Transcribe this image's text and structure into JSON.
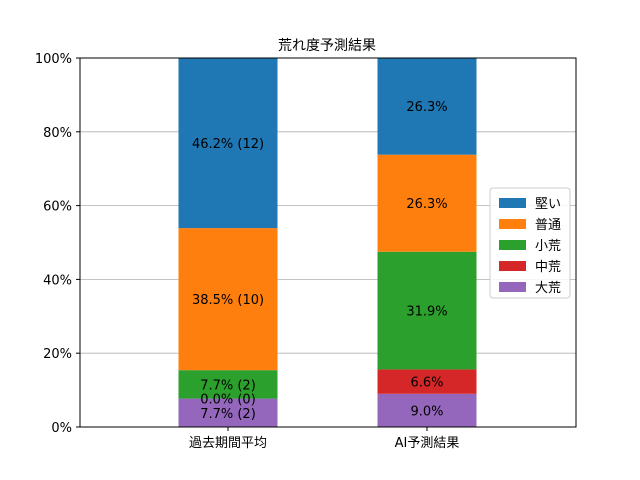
{
  "chart_data": {
    "type": "bar",
    "stacked": true,
    "title": "荒れ度予測結果",
    "xlabel": "",
    "ylabel": "",
    "ylim": [
      0,
      100
    ],
    "y_ticks": [
      "0%",
      "20%",
      "40%",
      "60%",
      "80%",
      "100%"
    ],
    "y_tick_values": [
      0,
      20,
      40,
      60,
      80,
      100
    ],
    "grid": "horizontal",
    "legend_position": "right",
    "categories": [
      "過去期間平均",
      "AI予測結果"
    ],
    "series": [
      {
        "name": "大荒",
        "color": "#9467bd",
        "values": [
          7.7,
          9.0
        ],
        "labels": [
          "7.7% (2)",
          "9.0%"
        ]
      },
      {
        "name": "中荒",
        "color": "#d62728",
        "values": [
          0.0,
          6.6
        ],
        "labels": [
          "0.0% (0)",
          "6.6%"
        ]
      },
      {
        "name": "小荒",
        "color": "#2ca02c",
        "values": [
          7.7,
          31.9
        ],
        "labels": [
          "7.7% (2)",
          "31.9%"
        ]
      },
      {
        "name": "普通",
        "color": "#ff7f0e",
        "values": [
          38.5,
          26.3
        ],
        "labels": [
          "38.5% (10)",
          "26.3%"
        ]
      },
      {
        "name": "堅い",
        "color": "#1f77b4",
        "values": [
          46.2,
          26.3
        ],
        "labels": [
          "46.2% (12)",
          "26.3%"
        ]
      }
    ],
    "legend_order": [
      "堅い",
      "普通",
      "小荒",
      "中荒",
      "大荒"
    ]
  }
}
